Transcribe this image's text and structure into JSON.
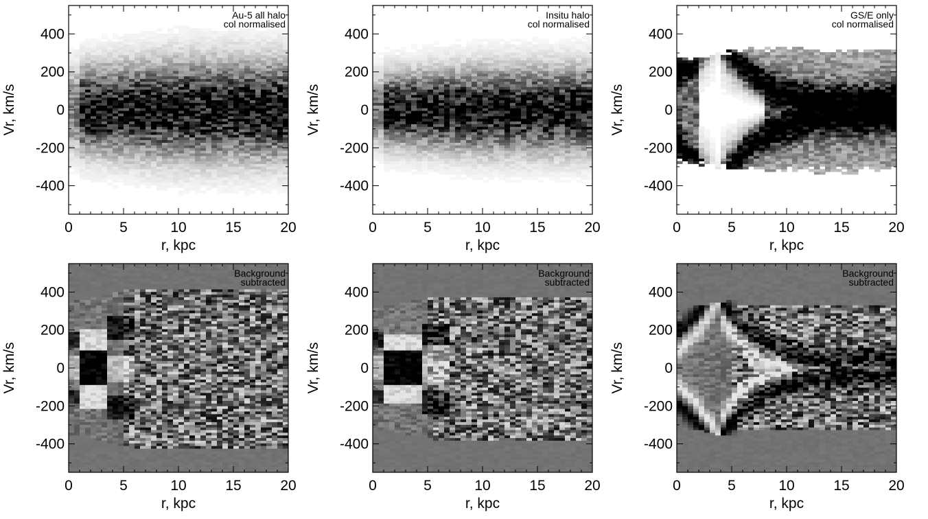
{
  "chart_data": [
    {
      "type": "heatmap",
      "annotation": [
        "Au-5 all halo",
        "col normalised"
      ],
      "xlabel": "r, kpc",
      "ylabel": "Vr, km/s",
      "xlim": [
        0,
        20
      ],
      "ylim": [
        -550,
        550
      ],
      "xticks": [
        0,
        5,
        10,
        15,
        20
      ],
      "yticks": [
        -400,
        -200,
        0,
        200,
        400
      ],
      "colormap": "grayscale-inverted",
      "profile": {
        "kind": "gaussian",
        "core_r": 3,
        "sigma_core": 135,
        "sigma_outer": 165,
        "spread_r": 3,
        "extent": 420
      }
    },
    {
      "type": "heatmap",
      "annotation": [
        "Insitu halo",
        "col normalised"
      ],
      "xlabel": "r, kpc",
      "ylabel": "Vr, km/s",
      "xlim": [
        0,
        20
      ],
      "ylim": [
        -550,
        550
      ],
      "xticks": [
        0,
        5,
        10,
        15,
        20
      ],
      "yticks": [
        -400,
        -200,
        0,
        200,
        400
      ],
      "colormap": "grayscale-inverted",
      "profile": {
        "kind": "gaussian",
        "core_r": 3,
        "sigma_core": 115,
        "sigma_outer": 140,
        "spread_r": 3,
        "extent": 380
      }
    },
    {
      "type": "heatmap",
      "annotation": [
        "GS/E only",
        "col normalised"
      ],
      "xlabel": "r, kpc",
      "ylabel": "Vr, km/s",
      "xlim": [
        0,
        20
      ],
      "ylim": [
        -550,
        550
      ],
      "xticks": [
        0,
        5,
        10,
        15,
        20
      ],
      "yticks": [
        -400,
        -200,
        0,
        200,
        400
      ],
      "colormap": "grayscale-inverted",
      "profile": {
        "kind": "chevron",
        "vertex_r": 4,
        "amp": 480,
        "falloff": 0.11,
        "extent": 300
      }
    },
    {
      "type": "heatmap",
      "annotation": [
        "Background",
        "subtracted"
      ],
      "xlabel": "r, kpc",
      "ylabel": "Vr, km/s",
      "xlim": [
        0,
        20
      ],
      "ylim": [
        -550,
        550
      ],
      "xticks": [
        0,
        5,
        10,
        15,
        20
      ],
      "yticks": [
        -400,
        -200,
        0,
        200,
        400
      ],
      "colormap": "grayscale-inverted",
      "profile": {
        "kind": "residual",
        "vertex_r": 3.5,
        "amp": 210,
        "extent": 420
      }
    },
    {
      "type": "heatmap",
      "annotation": [
        "Background",
        "subtracted"
      ],
      "xlabel": "r, kpc",
      "ylabel": "Vr, km/s",
      "xlim": [
        0,
        20
      ],
      "ylim": [
        -550,
        550
      ],
      "xticks": [
        0,
        5,
        10,
        15,
        20
      ],
      "yticks": [
        -400,
        -200,
        0,
        200,
        400
      ],
      "colormap": "grayscale-inverted",
      "profile": {
        "kind": "residual",
        "vertex_r": 4.5,
        "amp": 180,
        "extent": 380
      }
    },
    {
      "type": "heatmap",
      "annotation": [
        "Background",
        "subtracted"
      ],
      "xlabel": "r, kpc",
      "ylabel": "Vr, km/s",
      "xlim": [
        0,
        20
      ],
      "ylim": [
        -550,
        550
      ],
      "xticks": [
        0,
        5,
        10,
        15,
        20
      ],
      "yticks": [
        -400,
        -200,
        0,
        200,
        400
      ],
      "colormap": "grayscale-inverted",
      "profile": {
        "kind": "chevron-residual",
        "vertex_r": 4,
        "amp": 480,
        "falloff": 0.11,
        "extent": 330
      }
    }
  ]
}
